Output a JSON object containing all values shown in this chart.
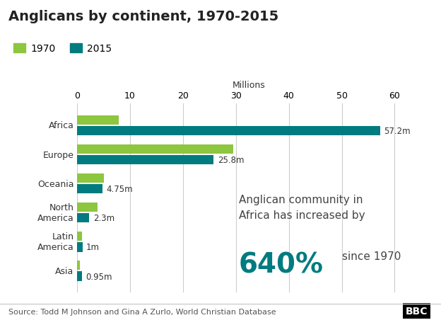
{
  "title": "Anglicans by continent, 1970-2015",
  "xlabel": "Millions",
  "categories": [
    "Africa",
    "Europe",
    "Oceania",
    "North\nAmerica",
    "Latin\nAmerica",
    "Asia"
  ],
  "values_1970": [
    7.8,
    29.5,
    5.0,
    3.8,
    0.9,
    0.5
  ],
  "values_2015": [
    57.2,
    25.8,
    4.75,
    2.3,
    1.0,
    0.95
  ],
  "labels_2015": [
    "57.2m",
    "25.8m",
    "4.75m",
    "2.3m",
    "1m",
    "0.95m"
  ],
  "color_1970": "#8dc63f",
  "color_2015": "#007b7f",
  "xlim": [
    0,
    65
  ],
  "xticks": [
    0,
    10,
    20,
    30,
    40,
    50,
    60
  ],
  "background_color": "#ffffff",
  "source_text": "Source: Todd M Johnson and Gina A Zurlo, World Christian Database",
  "annotation_line1": "Anglican community in",
  "annotation_line2": "Africa has increased by",
  "annotation_pct": "640%",
  "annotation_since": "since 1970",
  "title_fontsize": 14,
  "axis_fontsize": 9,
  "legend_fontsize": 10,
  "bar_height": 0.32,
  "label_fontsize": 8.5,
  "source_fontsize": 8,
  "annotation_fontsize": 11,
  "pct_fontsize": 28
}
